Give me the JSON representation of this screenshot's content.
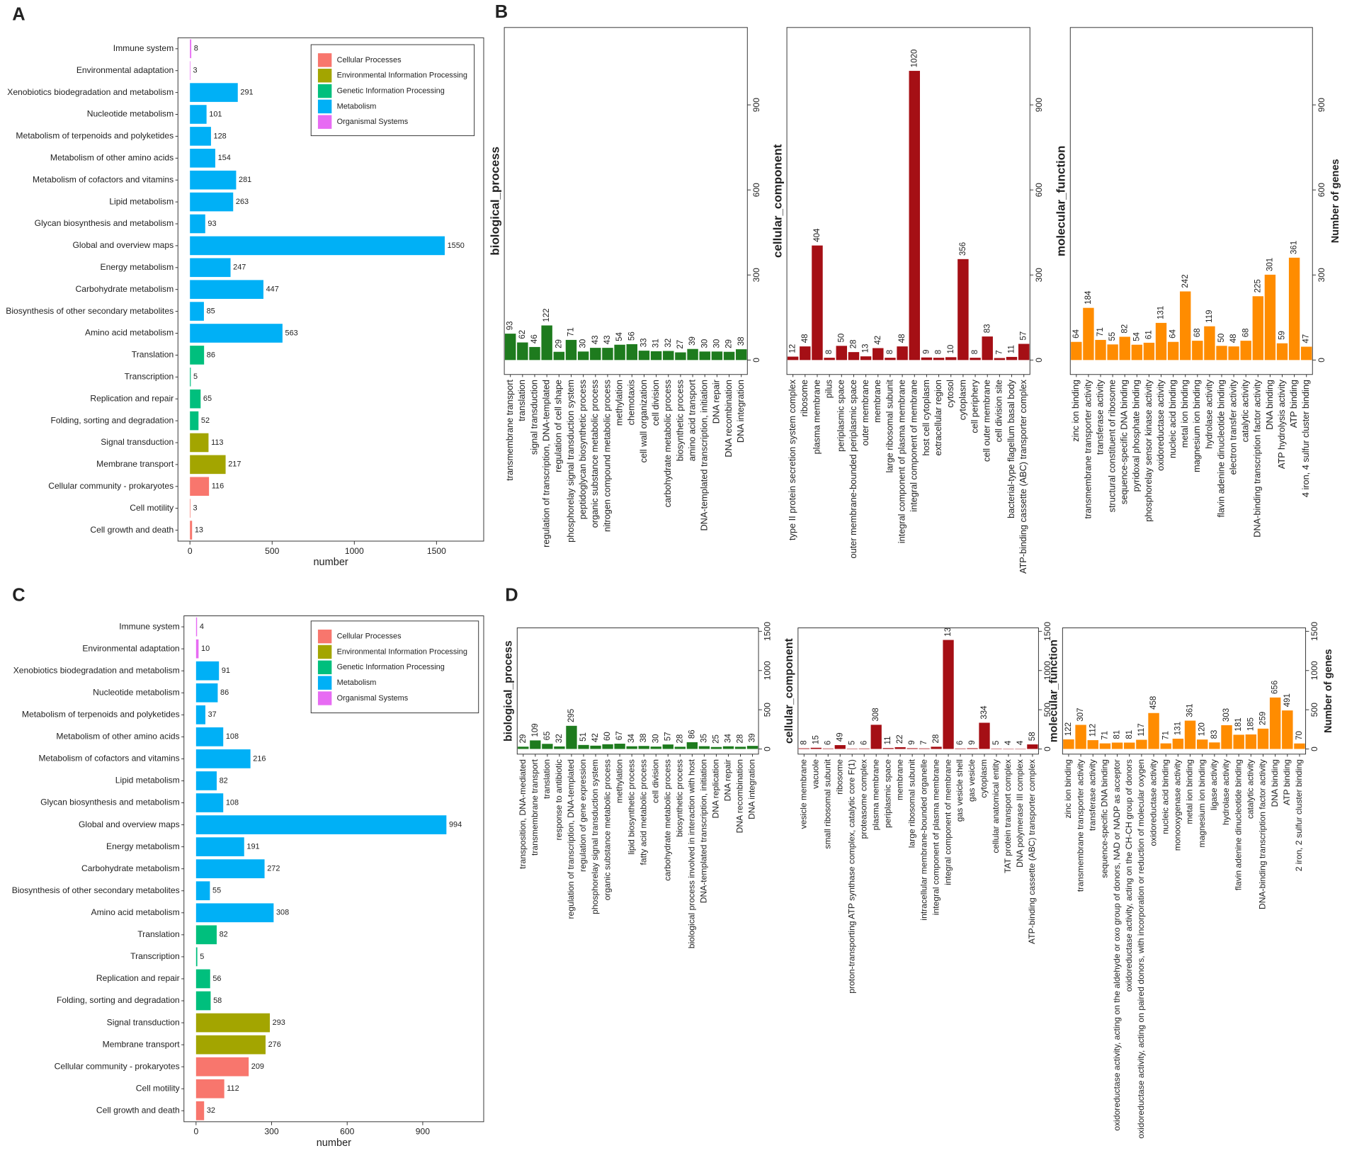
{
  "chart_data": [
    {
      "type": "barh",
      "panel": "A",
      "xlabel": "number",
      "categories": [
        "Immune system",
        "Environmental adaptation",
        "Xenobiotics biodegradation and metabolism",
        "Nucleotide metabolism",
        "Metabolism of terpenoids and polyketides",
        "Metabolism of other amino acids",
        "Metabolism of cofactors and vitamins",
        "Lipid metabolism",
        "Glycan biosynthesis and metabolism",
        "Global and overview maps",
        "Energy metabolism",
        "Carbohydrate metabolism",
        "Biosynthesis of other secondary metabolites",
        "Amino acid metabolism",
        "Translation",
        "Transcription",
        "Replication and repair",
        "Folding, sorting and degradation",
        "Signal transduction",
        "Membrane transport",
        "Cellular community - prokaryotes",
        "Cell motility",
        "Cell growth and death"
      ],
      "values": [
        8,
        3,
        291,
        101,
        128,
        154,
        281,
        263,
        93,
        1550,
        247,
        447,
        85,
        563,
        86,
        5,
        65,
        52,
        113,
        217,
        116,
        3,
        13
      ],
      "colors": [
        "#E76BF3",
        "#E76BF3",
        "#00B0F6",
        "#00B0F6",
        "#00B0F6",
        "#00B0F6",
        "#00B0F6",
        "#00B0F6",
        "#00B0F6",
        "#00B0F6",
        "#00B0F6",
        "#00B0F6",
        "#00B0F6",
        "#00B0F6",
        "#00BF7D",
        "#00BF7D",
        "#00BF7D",
        "#00BF7D",
        "#A3A500",
        "#A3A500",
        "#F8766D",
        "#F8766D",
        "#F8766D"
      ],
      "legend": [
        {
          "name": "Cellular Processes",
          "color": "#F8766D"
        },
        {
          "name": "Environmental Information Processing",
          "color": "#A3A500"
        },
        {
          "name": "Genetic Information Processing",
          "color": "#00BF7D"
        },
        {
          "name": "Metabolism",
          "color": "#00B0F6"
        },
        {
          "name": "Organismal Systems",
          "color": "#E76BF3"
        }
      ],
      "xlim": [
        -73,
        1787
      ],
      "xticks": [
        0,
        500,
        1000,
        1500
      ]
    },
    {
      "type": "bar",
      "panel": "B",
      "facet": "biological_process",
      "color": "#1E7B1E",
      "categories": [
        "transmembrane transport",
        "translation",
        "signal transduction",
        "regulation of transcription, DNA-templated",
        "regulation of cell shape",
        "phosphorelay signal transduction system",
        "peptidoglycan biosynthetic process",
        "organic substance metabolic process",
        "nitrogen compound metabolic process",
        "methylation",
        "chemotaxis",
        "cell wall organization",
        "cell division",
        "carbohydrate metabolic process",
        "biosynthetic process",
        "amino acid transport",
        "DNA-templated transcription, initiation",
        "DNA repair",
        "DNA recombination",
        "DNA integration"
      ],
      "values": [
        93,
        62,
        46,
        122,
        29,
        71,
        30,
        43,
        43,
        54,
        56,
        33,
        31,
        32,
        27,
        39,
        30,
        30,
        29,
        38
      ],
      "ylim": [
        -51,
        1173
      ],
      "yticks": [
        0,
        300,
        600,
        900
      ]
    },
    {
      "type": "bar",
      "facet": "cellular_component",
      "color": "#A50F15",
      "categories": [
        "type II protein secretion system complex",
        "ribosome",
        "plasma membrane",
        "pilus",
        "periplasmic space",
        "outer membrane-bounded periplasmic space",
        "outer membrane",
        "membrane",
        "large ribosomal subunit",
        "integral component of plasma membrane",
        "integral component of membrane",
        "host cell cytoplasm",
        "extracellular region",
        "cytosol",
        "cytoplasm",
        "cell periphery",
        "cell outer membrane",
        "cell division site",
        "bacterial-type flagellum basal body",
        "ATP-binding cassette (ABC) transporter complex"
      ],
      "values": [
        12,
        48,
        404,
        8,
        50,
        28,
        13,
        42,
        8,
        48,
        1020,
        9,
        8,
        10,
        356,
        8,
        83,
        7,
        11,
        57
      ],
      "ylim": [
        -51,
        1173
      ],
      "yticks": [
        0,
        300,
        600,
        900
      ]
    },
    {
      "type": "bar",
      "facet": "molecular_function",
      "color": "#FF8C00",
      "ylabel": "Number of genes",
      "categories": [
        "zinc ion binding",
        "transmembrane transporter activity",
        "transferase activity",
        "structural constituent of ribosome",
        "sequence-specific DNA binding",
        "pyridoxal phosphate binding",
        "phosphorelay sensor kinase activity",
        "oxidoreductase activity",
        "nucleic acid binding",
        "metal ion binding",
        "magnesium ion binding",
        "hydrolase activity",
        "flavin adenine dinucleotide binding",
        "electron transfer activity",
        "catalytic activity",
        "DNA-binding transcription factor activity",
        "DNA binding",
        "ATP hydrolysis activity",
        "ATP binding",
        "4 iron, 4 sulfur cluster binding"
      ],
      "values": [
        64,
        184,
        71,
        55,
        82,
        54,
        61,
        131,
        64,
        242,
        68,
        119,
        50,
        48,
        68,
        225,
        301,
        59,
        361,
        47
      ],
      "ylim": [
        -51,
        1173
      ],
      "yticks": [
        0,
        300,
        600,
        900
      ]
    },
    {
      "type": "barh",
      "panel": "C",
      "xlabel": "number",
      "categories": [
        "Immune system",
        "Environmental adaptation",
        "Xenobiotics biodegradation and metabolism",
        "Nucleotide metabolism",
        "Metabolism of terpenoids and polyketides",
        "Metabolism of other amino acids",
        "Metabolism of cofactors and vitamins",
        "Lipid metabolism",
        "Glycan biosynthesis and metabolism",
        "Global and overview maps",
        "Energy metabolism",
        "Carbohydrate metabolism",
        "Biosynthesis of other secondary metabolites",
        "Amino acid metabolism",
        "Translation",
        "Transcription",
        "Replication and repair",
        "Folding, sorting and degradation",
        "Signal transduction",
        "Membrane transport",
        "Cellular community - prokaryotes",
        "Cell motility",
        "Cell growth and death"
      ],
      "values": [
        4,
        10,
        91,
        86,
        37,
        108,
        216,
        82,
        108,
        994,
        191,
        272,
        55,
        308,
        82,
        5,
        56,
        58,
        293,
        276,
        209,
        112,
        32
      ],
      "colors": [
        "#E76BF3",
        "#E76BF3",
        "#00B0F6",
        "#00B0F6",
        "#00B0F6",
        "#00B0F6",
        "#00B0F6",
        "#00B0F6",
        "#00B0F6",
        "#00B0F6",
        "#00B0F6",
        "#00B0F6",
        "#00B0F6",
        "#00B0F6",
        "#00BF7D",
        "#00BF7D",
        "#00BF7D",
        "#00BF7D",
        "#A3A500",
        "#A3A500",
        "#F8766D",
        "#F8766D",
        "#F8766D"
      ],
      "legend": [
        {
          "name": "Cellular Processes",
          "color": "#F8766D"
        },
        {
          "name": "Environmental Information Processing",
          "color": "#A3A500"
        },
        {
          "name": "Genetic Information Processing",
          "color": "#00BF7D"
        },
        {
          "name": "Metabolism",
          "color": "#00B0F6"
        },
        {
          "name": "Organismal Systems",
          "color": "#E76BF3"
        }
      ],
      "xlim": [
        -48,
        1142
      ],
      "xticks": [
        0,
        300,
        600,
        900
      ]
    },
    {
      "type": "bar",
      "panel": "D",
      "facet": "biological_process",
      "color": "#1E7B1E",
      "categories": [
        "transposition, DNA-mediated",
        "transmembrane transport",
        "translation",
        "response to antibiotic",
        "regulation of transcription, DNA-templated",
        "regulation of gene expression",
        "phosphorelay signal transduction system",
        "organic substance metabolic process",
        "methylation",
        "lipid biosynthetic process",
        "fatty acid metabolic process",
        "cell division",
        "carbohydrate metabolic process",
        "biosynthetic process",
        "biological process involved in interaction with host",
        "DNA-templated transcription, initiation",
        "DNA replication",
        "DNA repair",
        "DNA recombination",
        "DNA integration"
      ],
      "values": [
        29,
        109,
        65,
        32,
        295,
        51,
        42,
        60,
        67,
        34,
        38,
        30,
        57,
        28,
        86,
        35,
        25,
        34,
        28,
        39
      ],
      "ylim": [
        -66,
        1544
      ],
      "yticks": [
        0,
        500,
        1000,
        1500
      ]
    },
    {
      "type": "bar",
      "facet": "cellular_component",
      "color": "#A50F15",
      "categories": [
        "vesicle membrane",
        "vacuole",
        "small ribosomal subunit",
        "ribosome",
        "proton-transporting ATP synthase complex, catalytic core F(1)",
        "proteasome complex",
        "plasma membrane",
        "periplasmic space",
        "membrane",
        "large ribosomal subunit",
        "intracellular membrane-bounded organelle",
        "integral component of plasma membrane",
        "integral component of membrane",
        "gas vesicle shell",
        "gas vesicle",
        "cytoplasm",
        "cellular anatomical entity",
        "TAT protein transport complex",
        "DNA polymerase III complex",
        "ATP-binding cassette (ABC) transporter complex"
      ],
      "values": [
        8,
        15,
        6,
        49,
        5,
        6,
        308,
        11,
        22,
        9,
        7,
        28,
        1390,
        6,
        9,
        334,
        5,
        4,
        4,
        58
      ],
      "ylim": [
        -66,
        1544
      ],
      "yticks": [
        0,
        500,
        1000,
        1500
      ]
    },
    {
      "type": "bar",
      "facet": "molecular_function",
      "color": "#FF8C00",
      "ylabel": "Number of genes",
      "categories": [
        "zinc ion binding",
        "transmembrane transporter activity",
        "transferase activity",
        "sequence-specific DNA binding",
        "oxidoreductase activity, acting on the aldehyde or oxo group of donors, NAD or NADP as acceptor",
        "oxidoreductase activity, acting on the CH-CH group of donors",
        "oxidoreductase activity, acting on paired donors, with incorporation or reduction of molecular oxygen",
        "oxidoreductase activity",
        "nucleic acid binding",
        "monooxygenase activity",
        "metal ion binding",
        "magnesium ion binding",
        "ligase activity",
        "hydrolase activity",
        "flavin adenine dinucleotide binding",
        "catalytic activity",
        "DNA-binding transcription factor activity",
        "DNA binding",
        "ATP binding",
        "2 iron, 2 sulfur cluster binding"
      ],
      "values": [
        122,
        307,
        112,
        71,
        81,
        81,
        117,
        458,
        71,
        131,
        361,
        120,
        83,
        303,
        181,
        185,
        259,
        656,
        491,
        70
      ],
      "ylim": [
        -66,
        1544
      ],
      "yticks": [
        0,
        500,
        1000,
        1500
      ]
    }
  ]
}
